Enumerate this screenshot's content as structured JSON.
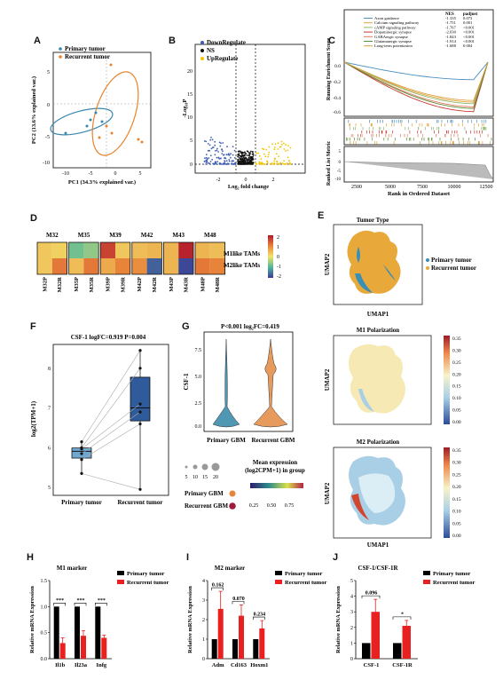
{
  "panels": {
    "A": {
      "label": "A",
      "legend": [
        "Primary tumor",
        "Recurrent tumor"
      ],
      "xlabel": "PC1 (34.3% explained var.)",
      "ylabel": "PC2 (13.6% explained var.)",
      "xticks": [
        "-10",
        "-5",
        "0",
        "5"
      ],
      "yticks": [
        "5",
        "0",
        "-5",
        "-10"
      ],
      "colors": {
        "primary": "#3a87ad",
        "recurrent": "#e8832a"
      }
    },
    "B": {
      "label": "B",
      "legend": [
        "DownRegulate",
        "NS",
        "UpRegulate"
      ],
      "xlabel": "Log₂ fold change",
      "ylabel": "-Log₁₀P",
      "xticks": [
        "-2",
        "0",
        "2"
      ],
      "yticks": [
        "20",
        "15",
        "10",
        "5",
        "0"
      ],
      "colors": {
        "down": "#3f5fb5",
        "ns": "#111111",
        "up": "#f2c500"
      }
    },
    "C": {
      "label": "C",
      "table_header": [
        "NES",
        "padjust"
      ],
      "pathways": [
        {
          "name": "Axon guidance",
          "nes": "-1.335",
          "padj": "0.073",
          "color": "#4a90c2"
        },
        {
          "name": "Calcium signaling pathway",
          "nes": "-1.751",
          "padj": "0.001",
          "color": "#e8a23a"
        },
        {
          "name": "cAMP signaling pathway",
          "nes": "-1.767",
          "padj": "<0.001",
          "color": "#8db86b"
        },
        {
          "name": "Dopaminergic synapse",
          "nes": "-2.030",
          "padj": "<0.001",
          "color": "#c9382e"
        },
        {
          "name": "GABAergic synapse",
          "nes": "-1.843",
          "padj": "<0.001",
          "color": "#e07a5f"
        },
        {
          "name": "Glutamatergic synapse",
          "nes": "-1.914",
          "padj": "<0.001",
          "color": "#5e8c31"
        },
        {
          "name": "Long-term potentiation",
          "nes": "-1.688",
          "padj": "0.004",
          "color": "#d9a441"
        }
      ],
      "ylabel_top": "Running Enrichment Score",
      "ylabel_bottom": "Ranked List Metric",
      "xlabel": "Rank in Ordered Dataset",
      "xticks": [
        "2500",
        "5000",
        "7500",
        "10000",
        "12500"
      ],
      "yticks": [
        "0.0",
        "-0.2",
        "-0.4",
        "-0.6"
      ],
      "yticks_bottom": [
        "5",
        "0",
        "-5",
        "-10"
      ]
    },
    "D": {
      "label": "D",
      "groups": [
        "M32",
        "M35",
        "M39",
        "M42",
        "M43",
        "M48"
      ],
      "row_labels": [
        "M1like TAMs",
        "M2like TAMs"
      ],
      "col_labels": [
        "M32P",
        "M32R",
        "M35P",
        "M35R",
        "M39P",
        "M39R",
        "M42P",
        "M42R",
        "M43P",
        "M43R",
        "M48P",
        "M48R"
      ],
      "scale_ticks": [
        "2",
        "1",
        "0",
        "-1",
        "-2"
      ],
      "values": [
        [
          0.3,
          0.2,
          -0.8,
          -0.6,
          1.6,
          0.3,
          0.4,
          0.5,
          0.5,
          1.9,
          0.5,
          0.4
        ],
        [
          0.3,
          1.1,
          0.4,
          1.1,
          0.6,
          1.0,
          0.9,
          -1.7,
          0.5,
          -1.9,
          1.1,
          1.0
        ]
      ]
    },
    "E": {
      "label": "E",
      "subtitles": [
        "Tumor Type",
        "M1 Polarization",
        "M2 Polarization"
      ],
      "legend": [
        "Primary tumor",
        "Recurrent tumor"
      ],
      "xlabel": "UMAP1",
      "ylabel": "UMAP2",
      "scale_ticks": [
        "0.35",
        "0.30",
        "0.25",
        "0.20",
        "0.15",
        "0.10",
        "0.05",
        "0.00"
      ]
    },
    "F": {
      "label": "F",
      "title": "CSF-1 logFC=0.919 P=0.004",
      "ylabel": "log2(TPM+1)",
      "categories": [
        "Primary tumor",
        "Recurrent tumor"
      ],
      "yticks": [
        "8",
        "7",
        "6",
        "5"
      ]
    },
    "G": {
      "label": "G",
      "title": "P<0.001 log₂FC=0.419",
      "ylabel": "CSF-1",
      "yticks": [
        "7.5",
        "5.0",
        "2.5",
        "0.0"
      ],
      "categories": [
        "Primary GBM",
        "Recurrent GBM"
      ],
      "size_legend": [
        "5",
        "10",
        "15",
        "20"
      ],
      "color_legend_title": "Mean expression\n(log2CPM+1) in group",
      "color_ticks": [
        "0.25",
        "0.50",
        "0.75"
      ],
      "dot_rows": [
        "Primary GBM",
        "Recurrent GBM"
      ]
    },
    "H": {
      "label": "H",
      "title": "M1 marker",
      "ylabel": "Relative mRNA Expression",
      "legend": [
        "Primary tumor",
        "Recurrent tumor"
      ],
      "significance": [
        "***",
        "***",
        "***"
      ]
    },
    "I": {
      "label": "I",
      "title": "M2 marker",
      "ylabel": "Relative mRNA Expression",
      "legend": [
        "Primary tumor",
        "Recurrent tumor"
      ],
      "pvalues": [
        "0.162",
        "0.070",
        "0.234"
      ]
    },
    "J": {
      "label": "J",
      "title": "CSF-1/CSF-1R",
      "ylabel": "Relative mRNA Expression",
      "legend": [
        "Primary tumor",
        "Recurrent tumor"
      ],
      "pvalues": [
        "0.096",
        "*"
      ]
    }
  },
  "chart_data": [
    {
      "panel": "H",
      "type": "bar",
      "categories": [
        "Il1b",
        "Il23a",
        "Infg"
      ],
      "series": [
        {
          "name": "Primary tumor",
          "values": [
            1.0,
            1.0,
            1.0
          ],
          "color": "#000000"
        },
        {
          "name": "Recurrent tumor",
          "values": [
            0.3,
            0.44,
            0.4
          ],
          "color": "#e8201f"
        }
      ],
      "errors": [
        0.1,
        0.1,
        0.05
      ],
      "yticks": [
        "0.0",
        "0.5",
        "1.0",
        "1.5"
      ],
      "ylim": [
        0,
        1.5
      ]
    },
    {
      "panel": "I",
      "type": "bar",
      "categories": [
        "Adm",
        "Cd163",
        "Hoxm1"
      ],
      "series": [
        {
          "name": "Primary tumor",
          "values": [
            1.0,
            1.0,
            1.0
          ],
          "color": "#000000"
        },
        {
          "name": "Recurrent tumor",
          "values": [
            2.55,
            2.2,
            1.55
          ],
          "color": "#e8201f"
        }
      ],
      "errors": [
        0.9,
        0.55,
        0.4
      ],
      "yticks": [
        "0",
        "1",
        "2",
        "3",
        "4"
      ],
      "ylim": [
        0,
        4
      ]
    },
    {
      "panel": "J",
      "type": "bar",
      "categories": [
        "CSF-1",
        "CSF-1R"
      ],
      "series": [
        {
          "name": "Primary tumor",
          "values": [
            1.0,
            1.0
          ],
          "color": "#000000"
        },
        {
          "name": "Recurrent tumor",
          "values": [
            3.0,
            2.1
          ],
          "color": "#e8201f"
        }
      ],
      "errors": [
        0.8,
        0.35
      ],
      "yticks": [
        "0",
        "1",
        "2",
        "3",
        "4",
        "5"
      ],
      "ylim": [
        0,
        5
      ]
    },
    {
      "panel": "F",
      "type": "box",
      "categories": [
        "Primary tumor",
        "Recurrent tumor"
      ],
      "points": {
        "Primary tumor": [
          5.35,
          5.7,
          5.85,
          5.97,
          6.0,
          6.15
        ],
        "Recurrent tumor": [
          4.95,
          6.6,
          6.9,
          7.1,
          8.0,
          8.45
        ]
      },
      "ylim": [
        4.8,
        8.6
      ]
    }
  ]
}
